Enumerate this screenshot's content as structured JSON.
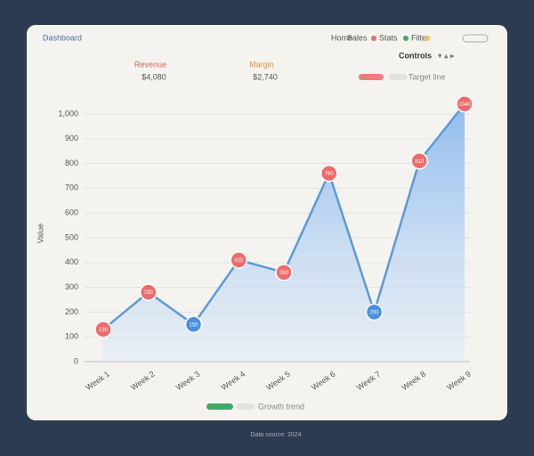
{
  "header": {
    "title": "Dashboard",
    "nav": [
      "Home",
      "Sales",
      "Stats",
      "Filter"
    ]
  },
  "stats": [
    {
      "label": "Revenue",
      "value": "$4,080"
    },
    {
      "label": "Margin",
      "value": "$2,740"
    }
  ],
  "controls": "Controls",
  "footer": "Data source: 2024",
  "chart_data": {
    "type": "line",
    "y_label": "Value",
    "categories": [
      "Week 1",
      "Week 2",
      "Week 3",
      "Week 4",
      "Week 5",
      "Week 6",
      "Week 7",
      "Week 8",
      "Week 9"
    ],
    "values": [
      130,
      280,
      150,
      410,
      360,
      760,
      200,
      810,
      1040
    ],
    "color": "#5b9bd5",
    "point_colors": [
      "#ef6b6b",
      "#ef6b6b",
      "#4a8fe0",
      "#ef6b6b",
      "#ef6b6b",
      "#ef6b6b",
      "#4a8fe0",
      "#ef6b6b",
      "#ef6b6b"
    ],
    "ylim": [
      0,
      1050
    ],
    "yticks": [
      0,
      100,
      200,
      300,
      400,
      500,
      600,
      700,
      800,
      900,
      {
        "value": 1000,
        "label": "1,000"
      }
    ],
    "grid": true,
    "legend_top": "Target line",
    "legend_bottom": "Growth trend"
  }
}
